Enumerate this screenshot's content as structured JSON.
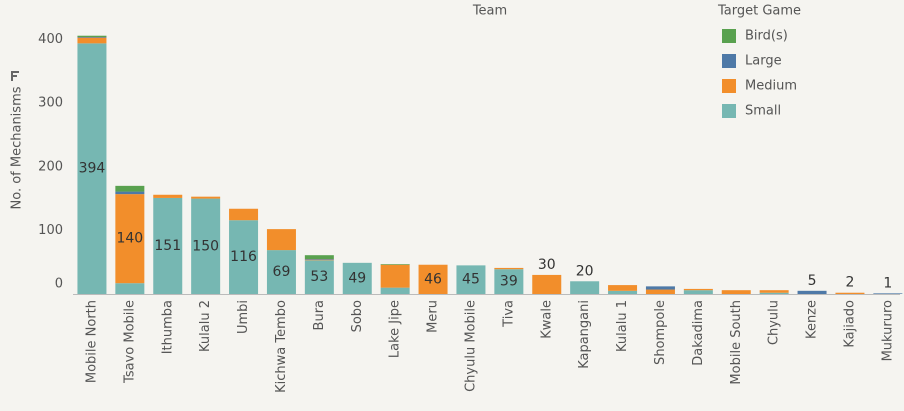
{
  "chart_data": {
    "type": "stacked_bar",
    "title": "Team",
    "ylabel": "No. of Mechanisms",
    "legend_title": "Target Game",
    "categories": [
      "Mobile North",
      "Tsavo Mobile",
      "Ithumba",
      "Kulalu 2",
      "Umbi",
      "Kichwa Tembo",
      "Bura",
      "Sobo",
      "Lake Jipe",
      "Meru",
      "Chyulu Mobile",
      "Tiva",
      "Kwale",
      "Kapangani",
      "Kulalu 1",
      "Shompole",
      "Dakadima",
      "Mobile South",
      "Chyulu",
      "Kenze",
      "Kajiado",
      "Mukururo"
    ],
    "series": [
      {
        "name": "Bird(s)",
        "color": "#59a14f",
        "values": [
          2,
          9,
          0,
          0,
          0,
          0,
          6,
          0,
          1,
          0,
          0,
          0,
          0,
          0,
          0,
          0,
          0,
          0,
          0,
          0,
          0,
          0
        ]
      },
      {
        "name": "Large",
        "color": "#4e79a7",
        "values": [
          1,
          4,
          0,
          0,
          0,
          0,
          1,
          0,
          0,
          0,
          0,
          0,
          0,
          0,
          0,
          5,
          0,
          0,
          0,
          5,
          0,
          1
        ],
        "value_labels": [
          null,
          null,
          null,
          null,
          null,
          null,
          null,
          null,
          null,
          null,
          null,
          null,
          null,
          null,
          null,
          null,
          null,
          null,
          null,
          "5",
          null,
          "1"
        ]
      },
      {
        "name": "Medium",
        "color": "#f28e2b",
        "values": [
          9,
          140,
          5,
          3,
          18,
          33,
          1,
          0,
          36,
          46,
          0,
          2,
          30,
          0,
          9,
          7,
          2,
          6,
          4,
          0,
          2,
          0
        ],
        "value_labels": [
          null,
          "140",
          null,
          null,
          null,
          null,
          null,
          null,
          null,
          "46",
          null,
          null,
          "30",
          null,
          null,
          null,
          null,
          null,
          null,
          null,
          "2",
          null
        ]
      },
      {
        "name": "Small",
        "color": "#76b7b2",
        "values": [
          394,
          17,
          151,
          150,
          116,
          69,
          53,
          49,
          10,
          0,
          45,
          39,
          0,
          20,
          5,
          0,
          6,
          0,
          2,
          0,
          0,
          0
        ],
        "value_labels": [
          "394",
          null,
          "151",
          "150",
          "116",
          "69",
          "53",
          "49",
          null,
          null,
          "45",
          "39",
          null,
          "20",
          null,
          null,
          null,
          null,
          null,
          null,
          null,
          null
        ]
      }
    ],
    "ylim": [
      0,
      415
    ],
    "yticks": [
      0,
      100,
      200,
      300,
      400
    ],
    "grid": false,
    "legend": "top-right"
  }
}
